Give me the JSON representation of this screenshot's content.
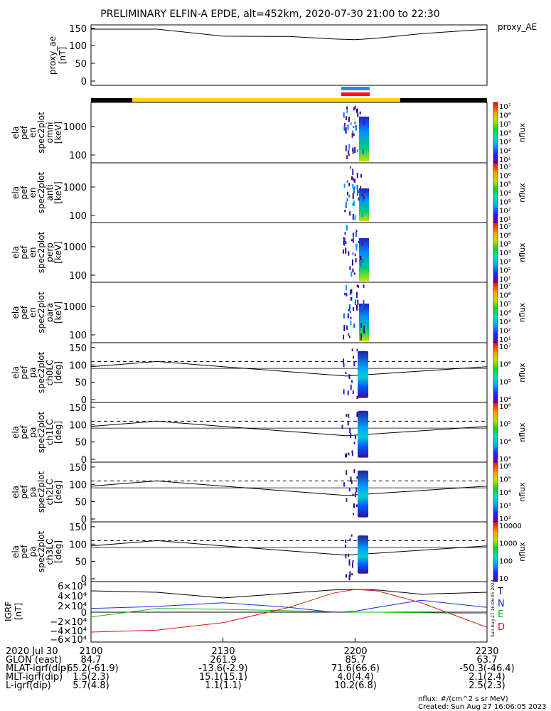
{
  "title": "PRELIMINARY ELFIN-A EPDE, alt=452km, 2020-07-30 21:00 to 22:30",
  "proxy_ae": {
    "label_right": "proxy_AE",
    "ylabel": [
      "proxy_ae",
      "[nT]"
    ],
    "yticks": [
      "150",
      "100",
      "50",
      "0"
    ]
  },
  "spec_panels": [
    {
      "ylabel": [
        "ela",
        "pef",
        "en",
        "spec2plot",
        "omni",
        "[keV]"
      ],
      "yticks": [
        "1000",
        "100"
      ],
      "cb_label": "nflux",
      "cb_ticks": [
        "10⁷",
        "10⁶",
        "10⁵",
        "10⁴",
        "10³",
        "10²",
        "10¹"
      ]
    },
    {
      "ylabel": [
        "ela",
        "pef",
        "en",
        "spec2plot",
        "anti",
        "[keV]"
      ],
      "yticks": [
        "1000",
        "100"
      ],
      "cb_label": "nflux",
      "cb_ticks": [
        "10⁷",
        "10⁶",
        "10⁵",
        "10⁴",
        "10³",
        "10²",
        "10¹"
      ]
    },
    {
      "ylabel": [
        "ela",
        "pef",
        "en",
        "spec2plot",
        "perp",
        "[keV]"
      ],
      "yticks": [
        "1000",
        "100"
      ],
      "cb_label": "nflux",
      "cb_ticks": [
        "10⁷",
        "10⁶",
        "10⁵",
        "10⁴",
        "10³",
        "10²",
        "10¹"
      ]
    },
    {
      "ylabel": [
        "ela",
        "pef",
        "en",
        "spec2plot",
        "para",
        "[keV]"
      ],
      "yticks": [
        "1000",
        "100"
      ],
      "cb_label": "nflux",
      "cb_ticks": [
        "10⁷",
        "10⁶",
        "10⁵",
        "10⁴",
        "10³",
        "10²",
        "10¹"
      ]
    }
  ],
  "pa_panels": [
    {
      "ylabel": [
        "ela",
        "pef",
        "pa",
        "spec2plot",
        "ch0LC",
        "[deg]"
      ],
      "yticks": [
        "150",
        "100",
        "50",
        "0"
      ],
      "cb_label": "nflux",
      "cb_ticks": [
        "10⁷",
        "10⁶",
        "10⁵",
        "10⁴"
      ]
    },
    {
      "ylabel": [
        "ela",
        "pef",
        "pa",
        "spec2plot",
        "ch1LC",
        "[deg]"
      ],
      "yticks": [
        "150",
        "100",
        "50",
        "0"
      ],
      "cb_label": "nflux",
      "cb_ticks": [
        "10⁶",
        "10⁵",
        "10⁴",
        "10³"
      ]
    },
    {
      "ylabel": [
        "ela",
        "pef",
        "pa",
        "spec2plot",
        "ch2LC",
        "[deg]"
      ],
      "yticks": [
        "150",
        "100",
        "50",
        "0"
      ],
      "cb_label": "nflux",
      "cb_ticks": [
        "10⁶",
        "10⁵",
        "10⁴",
        "10³",
        "10²"
      ]
    },
    {
      "ylabel": [
        "ela",
        "pef",
        "pa",
        "spec2plot",
        "ch3LC",
        "[deg]"
      ],
      "yticks": [
        "150",
        "100",
        "50",
        "0"
      ],
      "cb_label": "nflux",
      "cb_ticks": [
        "10000",
        "1000",
        "100",
        "10"
      ]
    }
  ],
  "igrf": {
    "ylabel": [
      "IGRF",
      "[nT]"
    ],
    "yticks": [
      "6×10⁴",
      "4×10⁴",
      "2×10⁴",
      "0",
      "−2×10⁴",
      "−4×10⁴",
      "−6×10⁴"
    ],
    "legend": [
      {
        "name": "T",
        "color": "#000000"
      },
      {
        "name": "N",
        "color": "#1030e0"
      },
      {
        "name": "E",
        "color": "#10c010"
      },
      {
        "name": "D",
        "color": "#e01010"
      }
    ],
    "stamp": "Sun Aug 27 16:06:05 2023"
  },
  "xaxis": {
    "ticks": [
      "2100",
      "2130",
      "2200",
      "2230"
    ],
    "rows": [
      {
        "label": "2020 Jul 30",
        "values": [
          "2100",
          "2130",
          "2200",
          "2230"
        ]
      },
      {
        "label": "GLON (east)",
        "values": [
          "84.7",
          "261.9",
          "85.7",
          "63.7"
        ]
      },
      {
        "label": "MLAT-igrf(dip)",
        "values": [
          "-65.2(-61.9)",
          "-13.6(-2.9)",
          "71.6(66.6)",
          "-50.3(-46.4)"
        ]
      },
      {
        "label": "MLT-igrf(dip)",
        "values": [
          "1.5(2.3)",
          "15.1(15.1)",
          "4.0(4.4)",
          "2.1(2.4)"
        ]
      },
      {
        "label": "L-igrf(dip)",
        "values": [
          "5.7(4.8)",
          "1.1(1.1)",
          "10.2(6.8)",
          "2.5(2.3)"
        ]
      }
    ]
  },
  "footer": {
    "units": "nflux: #/(cm^2 s sr MeV)",
    "created": "Created: Sun Aug 27 16:06:05 2023"
  },
  "colors": {
    "sunlight": "#ffd800",
    "shadow": "#000000",
    "sci_blue": "#1e8cff",
    "sci_red": "#ff1010"
  },
  "chart_data": [
    {
      "type": "line",
      "name": "proxy_AE",
      "x": [
        "2100",
        "2115",
        "2130",
        "2145",
        "2155",
        "2200",
        "2205",
        "2215",
        "2230"
      ],
      "values": [
        148,
        148,
        128,
        127,
        120,
        118,
        122,
        135,
        148
      ],
      "ylim": [
        0,
        160
      ]
    },
    {
      "type": "line",
      "name": "IGRF components",
      "x": [
        "2100",
        "2115",
        "2130",
        "2145",
        "2155",
        "2200",
        "2205",
        "2215",
        "2230"
      ],
      "series": [
        {
          "name": "T",
          "values": [
            45000,
            42000,
            30000,
            40000,
            47000,
            48000,
            47000,
            38000,
            42000
          ]
        },
        {
          "name": "N",
          "values": [
            8000,
            12000,
            20000,
            10000,
            0,
            2000,
            10000,
            25000,
            10000
          ]
        },
        {
          "name": "E",
          "values": [
            -10000,
            8000,
            6000,
            3000,
            1000,
            0,
            0,
            -1000,
            -3000
          ]
        },
        {
          "name": "D",
          "values": [
            -42000,
            -38000,
            -22000,
            10000,
            40000,
            48000,
            45000,
            20000,
            -32000
          ]
        }
      ],
      "ylim": [
        -60000,
        60000
      ]
    }
  ]
}
